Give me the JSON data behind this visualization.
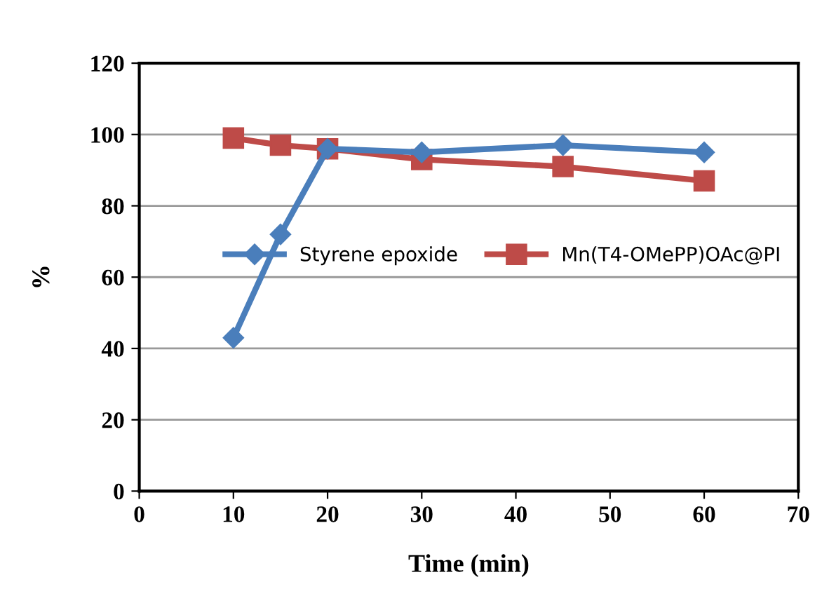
{
  "chart_data": {
    "type": "line",
    "xlabel": "Time (min)",
    "ylabel": "%",
    "xlim": [
      0,
      70
    ],
    "xticks": [
      0,
      10,
      20,
      30,
      40,
      50,
      60,
      70
    ],
    "ylim": [
      0,
      120
    ],
    "yticks": [
      0,
      20,
      40,
      60,
      80,
      100,
      120
    ],
    "grid": "y",
    "legend": "center right",
    "series": [
      {
        "name": "Styrene epoxide",
        "color": "#4a7ebb",
        "marker": "diamond",
        "x": [
          10,
          15,
          20,
          30,
          45,
          60
        ],
        "values": [
          43,
          72,
          96,
          95,
          97,
          95
        ]
      },
      {
        "name": "Mn(T4-OMePP)OAc@PI",
        "color": "#be4b48",
        "marker": "square",
        "x": [
          10,
          15,
          20,
          30,
          45,
          60
        ],
        "values": [
          99,
          97,
          96,
          93,
          91,
          87
        ]
      }
    ]
  }
}
